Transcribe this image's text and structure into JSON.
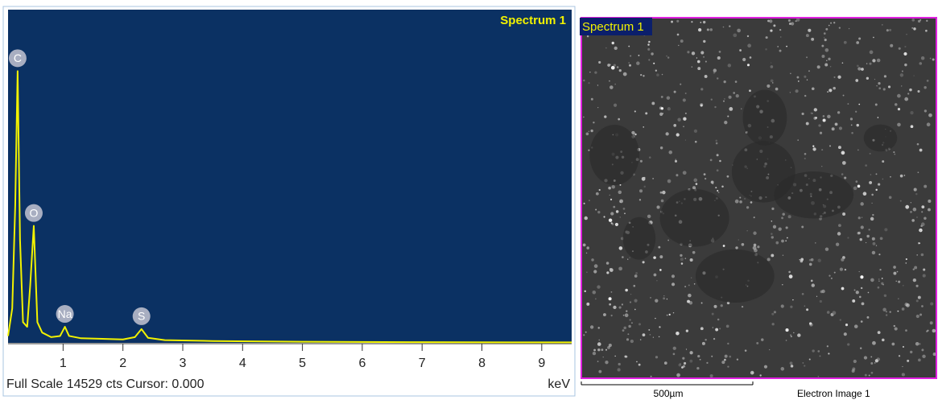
{
  "chart_data": {
    "type": "line",
    "title": "Spectrum 1",
    "color": "#f2f200",
    "x": [
      0.08,
      0.15,
      0.2,
      0.24,
      0.28,
      0.33,
      0.4,
      0.45,
      0.51,
      0.57,
      0.65,
      0.8,
      0.95,
      1.03,
      1.1,
      1.3,
      1.6,
      2.0,
      2.2,
      2.31,
      2.42,
      2.7,
      3.5,
      5,
      7,
      9.5
    ],
    "values": [
      300,
      1500,
      6000,
      11850,
      4500,
      900,
      700,
      2500,
      5100,
      900,
      450,
      250,
      300,
      700,
      300,
      200,
      180,
      150,
      250,
      600,
      220,
      120,
      80,
      50,
      30,
      20
    ],
    "xlim": [
      0.08,
      9.5
    ],
    "xticks": [
      1,
      2,
      3,
      4,
      5,
      6,
      7,
      8,
      9
    ],
    "xlabel": "keV",
    "ylim": [
      0,
      14529
    ],
    "footer": "Full Scale 14529 cts Cursor: 0.000",
    "peaks": [
      {
        "label": "C",
        "x": 0.24,
        "y": 11850
      },
      {
        "label": "O",
        "x": 0.51,
        "y": 5100
      },
      {
        "label": "Na",
        "x": 1.03,
        "y": 700
      },
      {
        "label": "S",
        "x": 2.31,
        "y": 600
      }
    ]
  },
  "image": {
    "label": "Spectrum 1",
    "scale_bar": "500µm",
    "caption": "Electron Image 1"
  }
}
